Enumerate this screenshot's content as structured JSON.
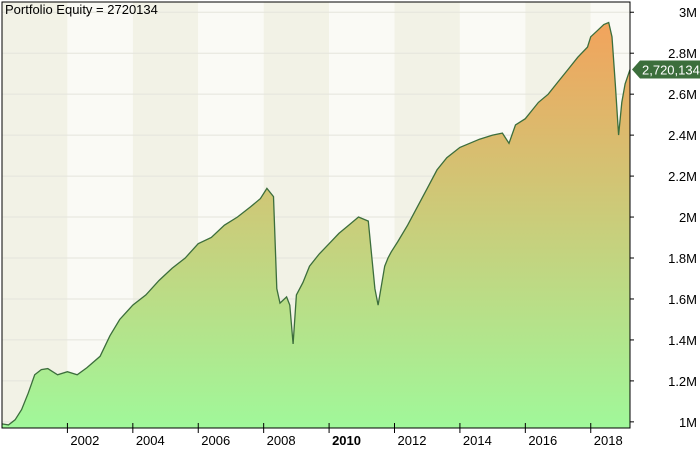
{
  "chart_data": {
    "type": "area",
    "title": "Portfolio Equity = 2720134",
    "xlabel": "",
    "ylabel": "",
    "x_ticks": [
      "2002",
      "2004",
      "2006",
      "2008",
      "2010",
      "2012",
      "2014",
      "2016",
      "2018"
    ],
    "y_ticks": [
      "1M",
      "1.2M",
      "1.4M",
      "1.6M",
      "1.8M",
      "2M",
      "2.2M",
      "2.4M",
      "2.6M",
      "2.8M",
      "3M"
    ],
    "y_tick_values": [
      1000000,
      1200000,
      1400000,
      1600000,
      1800000,
      2000000,
      2200000,
      2400000,
      2600000,
      2800000,
      3000000
    ],
    "xlim": [
      2000.0,
      2019.2
    ],
    "ylim": [
      970000,
      3050000
    ],
    "last_value": 2720134,
    "last_value_label": "2,720,134",
    "grid": true,
    "colors": {
      "line": "#3c6e3c",
      "fill_top": "#f2a35c",
      "fill_bottom": "#a0f89a",
      "label_bg": "#3c6e3c",
      "band_dark": "#f2f2e6",
      "band_light": "#fafaf5"
    },
    "series": [
      {
        "x": [
          2000.0,
          2000.2,
          2000.4,
          2000.6,
          2000.8,
          2001.0,
          2001.2,
          2001.4,
          2001.5,
          2001.7,
          2002.0,
          2002.3,
          2002.6,
          2003.0,
          2003.3,
          2003.6,
          2004.0,
          2004.4,
          2004.8,
          2005.2,
          2005.6,
          2006.0,
          2006.4,
          2006.8,
          2007.2,
          2007.6,
          2007.9,
          2008.1,
          2008.3,
          2008.4,
          2008.5,
          2008.7,
          2008.8,
          2008.9,
          2009.0,
          2009.2,
          2009.4,
          2009.7,
          2010.0,
          2010.3,
          2010.6,
          2010.9,
          2011.2,
          2011.4,
          2011.5,
          2011.7,
          2011.8,
          2011.9,
          2012.1,
          2012.4,
          2012.7,
          2013.0,
          2013.3,
          2013.6,
          2014.0,
          2014.3,
          2014.6,
          2015.0,
          2015.3,
          2015.5,
          2015.7,
          2016.0,
          2016.2,
          2016.4,
          2016.7,
          2017.0,
          2017.3,
          2017.6,
          2017.9,
          2018.0,
          2018.2,
          2018.4,
          2018.55,
          2018.65,
          2018.75,
          2018.85,
          2018.95,
          2019.05,
          2019.2
        ],
        "values": [
          990000,
          985000,
          1010000,
          1060000,
          1140000,
          1230000,
          1255000,
          1260000,
          1250000,
          1230000,
          1245000,
          1230000,
          1265000,
          1320000,
          1420000,
          1500000,
          1570000,
          1620000,
          1690000,
          1750000,
          1800000,
          1870000,
          1900000,
          1960000,
          2000000,
          2050000,
          2090000,
          2140000,
          2100000,
          1650000,
          1580000,
          1610000,
          1570000,
          1380000,
          1620000,
          1680000,
          1760000,
          1820000,
          1870000,
          1920000,
          1960000,
          2000000,
          1980000,
          1650000,
          1570000,
          1760000,
          1800000,
          1830000,
          1880000,
          1960000,
          2050000,
          2140000,
          2230000,
          2290000,
          2340000,
          2360000,
          2380000,
          2400000,
          2410000,
          2360000,
          2450000,
          2480000,
          2520000,
          2560000,
          2600000,
          2660000,
          2720000,
          2780000,
          2830000,
          2880000,
          2910000,
          2940000,
          2950000,
          2880000,
          2650000,
          2400000,
          2560000,
          2650000,
          2720134
        ]
      }
    ]
  }
}
